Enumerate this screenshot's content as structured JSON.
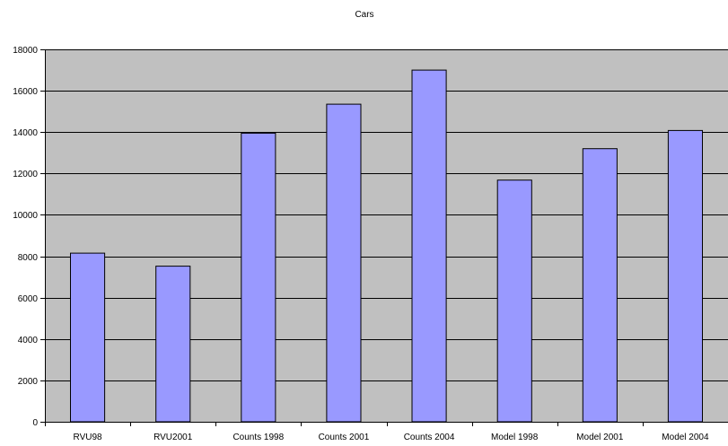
{
  "chart_data": {
    "type": "bar",
    "title": "Cars",
    "xlabel": "",
    "ylabel": "",
    "categories": [
      "RVU98",
      "RVU2001",
      "Counts 1998",
      "Counts 2001",
      "Counts 2004",
      "Model 1998",
      "Model 2001",
      "Model 2004"
    ],
    "values": [
      8150,
      7520,
      13950,
      15350,
      17000,
      11680,
      13200,
      14080
    ],
    "ylim": [
      0,
      18000
    ],
    "yticks": [
      0,
      2000,
      4000,
      6000,
      8000,
      10000,
      12000,
      14000,
      16000,
      18000
    ],
    "grid": true,
    "legend": "none",
    "colors": {
      "bar_fill": "#9999ff",
      "bar_stroke": "#000000",
      "plot_background": "#c0c0c0",
      "gridline": "#000000"
    }
  }
}
